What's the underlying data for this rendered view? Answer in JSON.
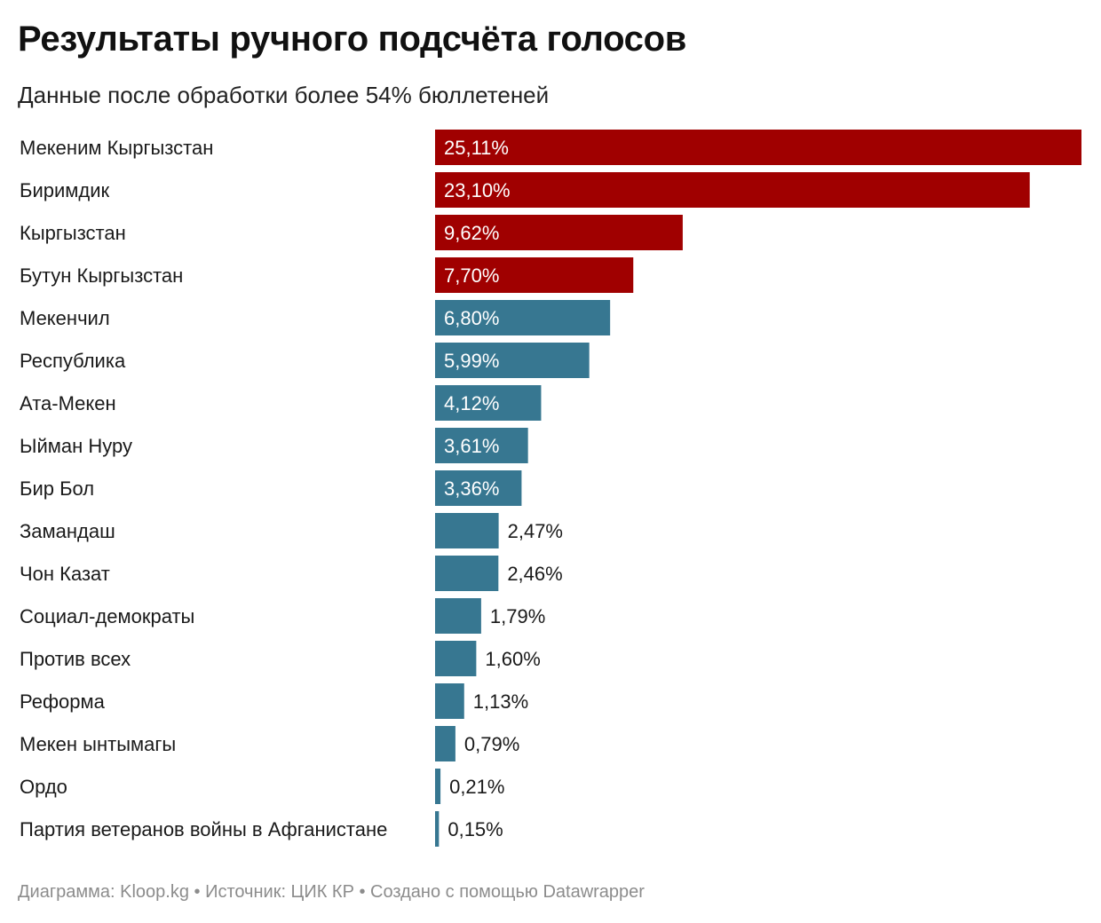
{
  "header": {
    "title": "Результаты ручного подсчёта голосов",
    "subtitle": "Данные после обработки более 54% бюллетеней"
  },
  "footer": {
    "text": "Диаграмма: Kloop.kg • Источник: ЦИК КР • Создано с помощью Datawrapper"
  },
  "colors": {
    "passed": "#a00000",
    "other": "#377791",
    "label_inside": "#ffffff",
    "label_outside": "#1a1a1a"
  },
  "chart_data": {
    "type": "bar",
    "orientation": "horizontal",
    "title": "Результаты ручного подсчёта голосов",
    "subtitle": "Данные после обработки более 54% бюллетеней",
    "xlim": [
      0,
      25.11
    ],
    "categories": [
      "Мекеним Кыргызстан",
      "Биримдик",
      "Кыргызстан",
      "Бутун Кыргызстан",
      "Мекенчил",
      "Республика",
      "Ата-Мекен",
      "Ыйман Нуру",
      "Бир Бол",
      "Замандаш",
      "Чон Казат",
      "Социал-демократы",
      "Против всех",
      "Реформа",
      "Мекен ынтымагы",
      "Ордо",
      "Партия ветеранов войны в Афганистане"
    ],
    "values": [
      25.11,
      23.1,
      9.62,
      7.7,
      6.8,
      5.99,
      4.12,
      3.61,
      3.36,
      2.47,
      2.46,
      1.79,
      1.6,
      1.13,
      0.79,
      0.21,
      0.15
    ],
    "value_labels": [
      "25,11%",
      "23,10%",
      "9,62%",
      "7,70%",
      "6,80%",
      "5,99%",
      "4,12%",
      "3,61%",
      "3,36%",
      "2,47%",
      "2,46%",
      "1,79%",
      "1,60%",
      "1,13%",
      "0,79%",
      "0,21%",
      "0,15%"
    ],
    "highlighted": [
      true,
      true,
      true,
      true,
      false,
      false,
      false,
      false,
      false,
      false,
      false,
      false,
      false,
      false,
      false,
      false,
      false
    ]
  }
}
